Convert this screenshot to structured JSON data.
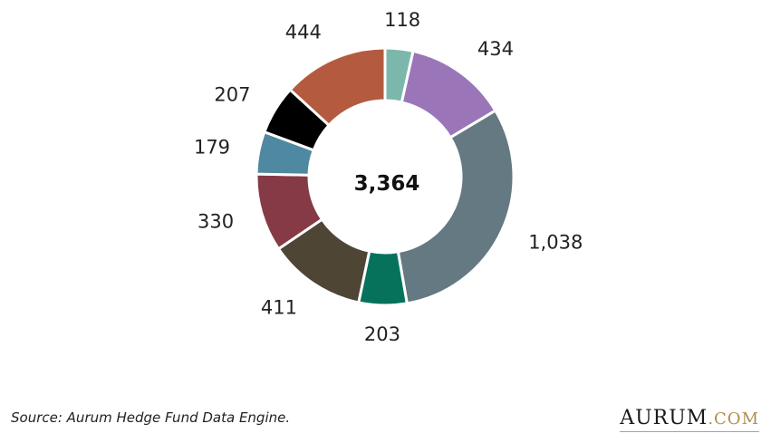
{
  "chart_data": {
    "type": "pie",
    "donut": true,
    "center_label": "3,364",
    "slices": [
      {
        "label": "118",
        "value": 118,
        "color": "#7bb8ab"
      },
      {
        "label": "434",
        "value": 434,
        "color": "#9a76b9"
      },
      {
        "label": "1,038",
        "value": 1038,
        "color": "#647981"
      },
      {
        "label": "203",
        "value": 203,
        "color": "#07725c"
      },
      {
        "label": "411",
        "value": 411,
        "color": "#4e4535"
      },
      {
        "label": "330",
        "value": 330,
        "color": "#853a46"
      },
      {
        "label": "179",
        "value": 179,
        "color": "#4f88a1"
      },
      {
        "label": "207",
        "value": 207,
        "color": "#000000"
      },
      {
        "label": "444",
        "value": 444,
        "color": "#b45a3f"
      }
    ],
    "start_angle_deg": 0,
    "direction": "clockwise"
  },
  "footer": {
    "source": "Source: Aurum Hedge Fund Data Engine.",
    "logo_main": "AURUM",
    "logo_suffix": ".COM"
  }
}
